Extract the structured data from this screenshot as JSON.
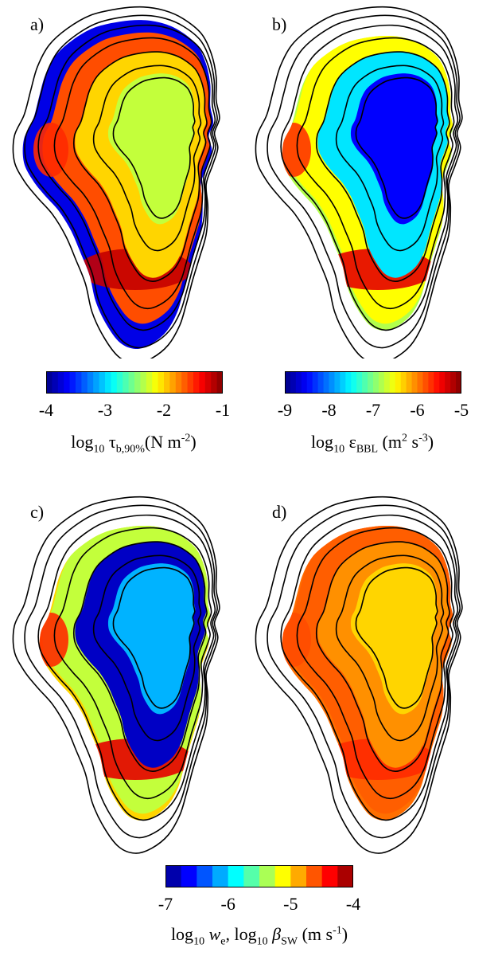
{
  "chart_data": [
    {
      "type": "heatmap",
      "panel": "a)",
      "colorbar": {
        "label": "log10 τb,90% (N m-2)",
        "ticks": [
          "-4",
          "-3",
          "-2",
          "-1"
        ],
        "range": [
          -4,
          -1
        ],
        "colormap": "jet"
      },
      "field": {
        "center": -2.3,
        "mid": -2.0,
        "margin": -1.6,
        "edge_south": -1.2,
        "edge_west": -1.5,
        "rim": -3.7
      }
    },
    {
      "type": "heatmap",
      "panel": "b)",
      "colorbar": {
        "label": "log10 εBBL (m2 s-3)",
        "ticks": [
          "-9",
          "-8",
          "-7",
          "-6",
          "-5"
        ],
        "range": [
          -9,
          -5
        ],
        "colormap": "jet"
      },
      "field": {
        "center": -8.5,
        "mid": -7.6,
        "margin": -6.5,
        "edge_south": -5.4,
        "edge_west": -5.7,
        "rim": -6.8
      }
    },
    {
      "type": "heatmap",
      "panel": "c)",
      "colorbar": {
        "label": "log10 we, log10 βSW (m s-1)",
        "ticks": [
          "-7",
          "-6",
          "-5",
          "-4"
        ],
        "range": [
          -7,
          -4
        ],
        "colormap": "jet-discrete"
      },
      "field": {
        "center": -6.1,
        "mid": -6.8,
        "margin": -5.3,
        "edge_south": -4.3,
        "edge_west": -4.5,
        "rim": -5.0
      }
    },
    {
      "type": "heatmap",
      "panel": "d)",
      "colorbar": {
        "label": "log10 we, log10 βSW (m s-1)",
        "ticks": [
          "-7",
          "-6",
          "-5",
          "-4"
        ],
        "range": [
          -7,
          -4
        ],
        "colormap": "jet-discrete"
      },
      "field": {
        "center": -5.0,
        "mid": -4.8,
        "margin": -4.65,
        "edge_south": -4.5,
        "edge_west": -4.6,
        "rim": -4.7
      }
    }
  ],
  "labels": {
    "a": "a)",
    "b": "b)",
    "c": "c)",
    "d": "d)",
    "cbar_a": {
      "pre": "log",
      "sub": "10",
      "sym": " τ",
      "symsub": "b,90%",
      "unit": "(N m",
      "sup": "-2",
      "end": ")"
    },
    "cbar_b": {
      "pre": "log",
      "sub": "10",
      "sym": " ε",
      "symsub": "BBL",
      "unit": " (m",
      "sup1": "2",
      "mid": " s",
      "sup2": "-3",
      "end": ")"
    },
    "cbar_cd": {
      "pre": "log",
      "sub": "10",
      "sym1": " w",
      "sym1sub": "e",
      "comma": ", log",
      "sub2": "10",
      "sym2": " β",
      "sym2sub": "SW",
      "unit": " (m s",
      "sup": "-1",
      "end": ")"
    }
  }
}
